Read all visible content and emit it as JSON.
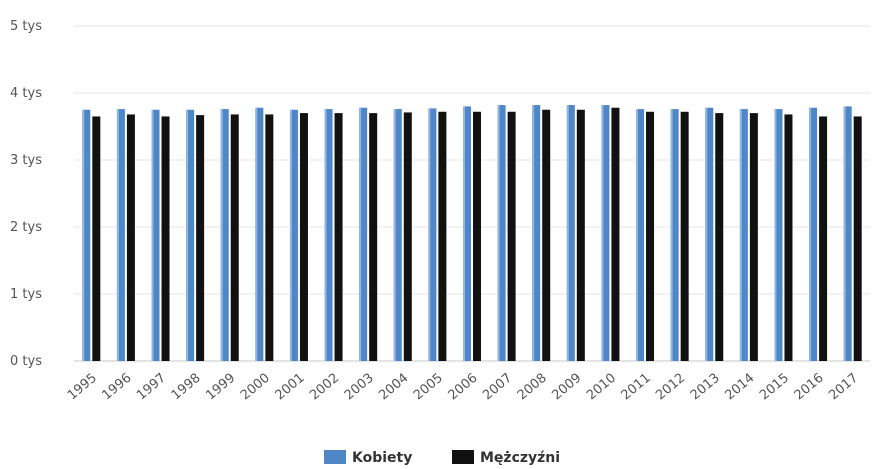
{
  "chart_data": {
    "type": "bar",
    "categories": [
      "1995",
      "1996",
      "1997",
      "1998",
      "1999",
      "2000",
      "2001",
      "2002",
      "2003",
      "2004",
      "2005",
      "2006",
      "2007",
      "2008",
      "2009",
      "2010",
      "2011",
      "2012",
      "2013",
      "2014",
      "2015",
      "2016",
      "2017"
    ],
    "series": [
      {
        "name": "Kobiety",
        "color": "#4f86c6",
        "values": [
          3750,
          3760,
          3750,
          3750,
          3760,
          3780,
          3750,
          3760,
          3780,
          3760,
          3770,
          3800,
          3820,
          3820,
          3820,
          3820,
          3760,
          3760,
          3780,
          3760,
          3760,
          3780,
          3800
        ]
      },
      {
        "name": "Mężczyźni",
        "color": "#111111",
        "values": [
          3650,
          3680,
          3650,
          3670,
          3680,
          3680,
          3700,
          3700,
          3700,
          3710,
          3720,
          3720,
          3720,
          3750,
          3750,
          3780,
          3720,
          3720,
          3700,
          3700,
          3680,
          3650,
          3650
        ]
      }
    ],
    "y_ticks": [
      {
        "value": 0,
        "label": "0 tys"
      },
      {
        "value": 1000,
        "label": "1 tys"
      },
      {
        "value": 2000,
        "label": "2 tys"
      },
      {
        "value": 3000,
        "label": "3 tys"
      },
      {
        "value": 4000,
        "label": "4 tys"
      },
      {
        "value": 5000,
        "label": "5 tys"
      }
    ],
    "ylim": [
      0,
      5000
    ],
    "grid": true,
    "legend_position": "bottom-center",
    "title": "",
    "xlabel": "",
    "ylabel": ""
  }
}
